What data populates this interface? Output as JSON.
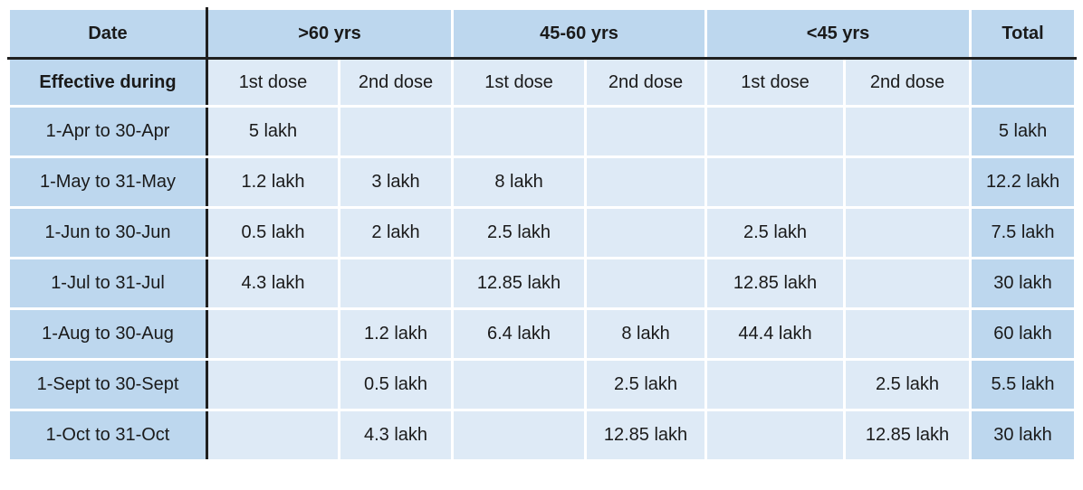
{
  "colors": {
    "header_bg": "#BDD7EE",
    "cell_bg": "#DEEAF6",
    "grid_line": "#FFFFFF",
    "frame_line": "#1F1F1F",
    "text": "#1A1A1A"
  },
  "table": {
    "header_row1": [
      {
        "label": "Date"
      },
      {
        "label": ">60 yrs"
      },
      {
        "label": "45-60 yrs"
      },
      {
        "label": "<45 yrs"
      },
      {
        "label": "Total"
      }
    ],
    "header_row2": [
      "Effective during",
      "1st dose",
      "2nd dose",
      "1st dose",
      "2nd dose",
      "1st dose",
      "2nd dose",
      ""
    ],
    "rows": [
      {
        "date": "1-Apr to 30-Apr",
        "cells": [
          "5 lakh",
          "",
          "",
          "",
          "",
          ""
        ],
        "total": "5 lakh"
      },
      {
        "date": "1-May to 31-May",
        "cells": [
          "1.2 lakh",
          "3 lakh",
          "8 lakh",
          "",
          "",
          ""
        ],
        "total": "12.2 lakh"
      },
      {
        "date": "1-Jun to 30-Jun",
        "cells": [
          "0.5 lakh",
          "2 lakh",
          "2.5 lakh",
          "",
          "2.5 lakh",
          ""
        ],
        "total": "7.5 lakh"
      },
      {
        "date": "1-Jul to 31-Jul",
        "cells": [
          "4.3 lakh",
          "",
          "12.85 lakh",
          "",
          "12.85 lakh",
          ""
        ],
        "total": "30 lakh"
      },
      {
        "date": "1-Aug to 30-Aug",
        "cells": [
          "",
          "1.2 lakh",
          "6.4 lakh",
          "8 lakh",
          "44.4 lakh",
          ""
        ],
        "total": "60 lakh"
      },
      {
        "date": "1-Sept to 30-Sept",
        "cells": [
          "",
          "0.5 lakh",
          "",
          "2.5 lakh",
          "",
          "2.5 lakh"
        ],
        "total": "5.5 lakh"
      },
      {
        "date": "1-Oct to 31-Oct",
        "cells": [
          "",
          "4.3 lakh",
          "",
          "12.85 lakh",
          "",
          "12.85 lakh"
        ],
        "total": "30 lakh"
      }
    ]
  }
}
